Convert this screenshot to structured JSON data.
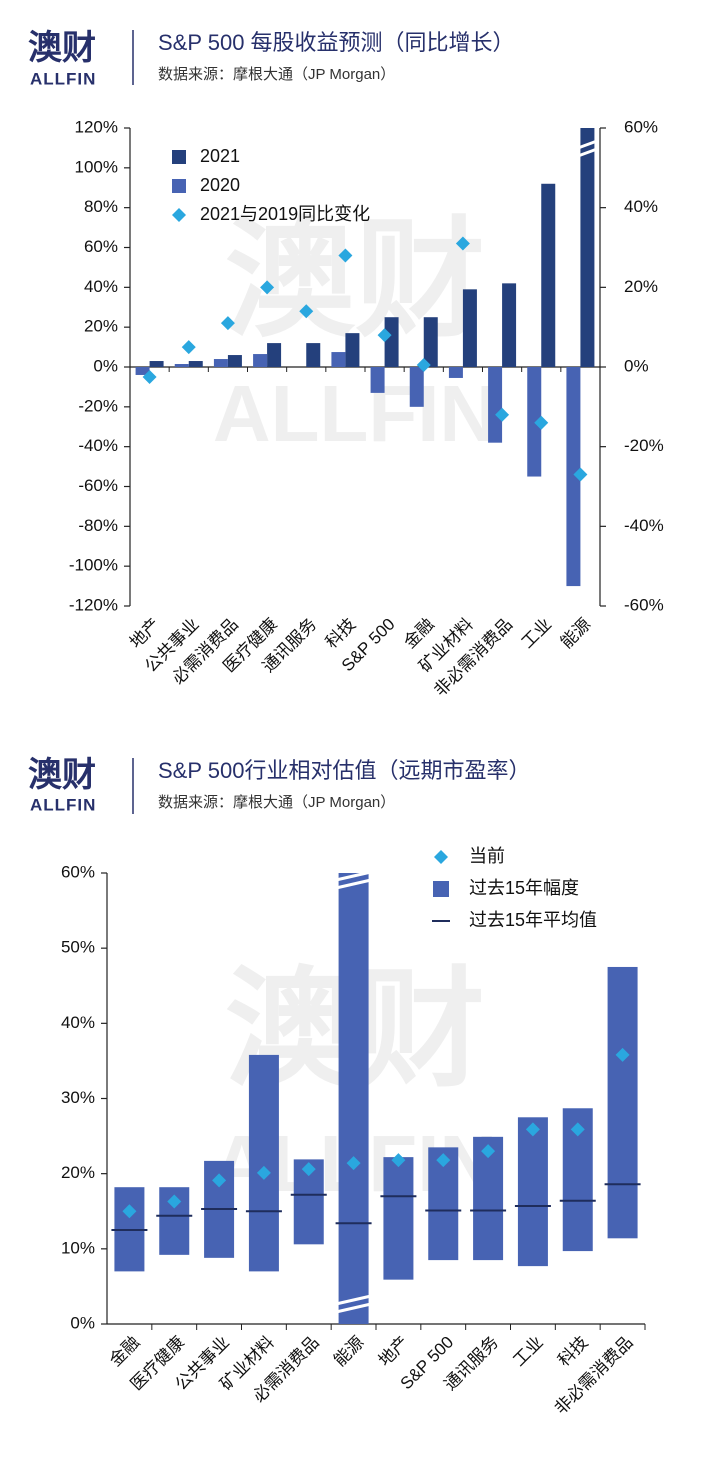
{
  "headers": [
    {
      "logo": "澳财",
      "logo_sub": "ALLFIN",
      "title": "S&P 500 每股收益预测（同比增长）",
      "subtitle": "数据来源：摩根大通（JP Morgan）"
    },
    {
      "logo": "澳财",
      "logo_sub": "ALLFIN",
      "title": "S&P 500行业相对估值（远期市盈率）",
      "subtitle": "数据来源：摩根大通（JP Morgan）"
    }
  ],
  "chart_data": [
    {
      "type": "bar",
      "categories": [
        "地产",
        "公共事业",
        "必需消费品",
        "医疗健康",
        "通讯服务",
        "科技",
        "S&P 500",
        "金融",
        "矿业材料",
        "非必需消费品",
        "工业",
        "能源"
      ],
      "series": [
        {
          "name": "2021",
          "color": "#24407c",
          "values": [
            3,
            3,
            6,
            12,
            12,
            17,
            25,
            25,
            39,
            42,
            92,
            120
          ]
        },
        {
          "name": "2020",
          "color": "#4763b3",
          "values": [
            -4,
            1.5,
            4,
            6.5,
            0,
            7.5,
            -13,
            -20,
            -5.5,
            -38,
            -55,
            -110
          ]
        },
        {
          "name": "2021与2019同比变化",
          "color": "#2aa7df",
          "axis": "y2",
          "marker": "diamond",
          "values": [
            -2.5,
            5,
            11,
            20,
            14,
            28,
            8,
            0.5,
            31,
            -12,
            -14,
            -27
          ]
        }
      ],
      "ylim": [
        -120,
        120
      ],
      "yticks": [
        {
          "value": -120,
          "label": "-120%"
        },
        {
          "value": -100,
          "label": "-100%"
        },
        {
          "value": -80,
          "label": "-80%"
        },
        {
          "value": -60,
          "label": "-60%"
        },
        {
          "value": -40,
          "label": "-40%"
        },
        {
          "value": -20,
          "label": "-20%"
        },
        {
          "value": 0,
          "label": "0%"
        },
        {
          "value": 20,
          "label": "20%"
        },
        {
          "value": 40,
          "label": "40%"
        },
        {
          "value": 60,
          "label": "60%"
        },
        {
          "value": 80,
          "label": "80%"
        },
        {
          "value": 100,
          "label": "100%"
        },
        {
          "value": 120,
          "label": "120%"
        }
      ],
      "y2lim": [
        -60,
        60
      ],
      "y2ticks": [
        {
          "value": -60,
          "label": "-60%"
        },
        {
          "value": -40,
          "label": "-40%"
        },
        {
          "value": -20,
          "label": "-20%"
        },
        {
          "value": 0,
          "label": "0%"
        },
        {
          "value": 20,
          "label": "20%"
        },
        {
          "value": 40,
          "label": "40%"
        },
        {
          "value": 60,
          "label": "60%"
        }
      ],
      "legend": "upper left"
    },
    {
      "type": "range",
      "categories": [
        "金融",
        "医疗健康",
        "公共事业",
        "矿业材料",
        "必需消费品",
        "能源",
        "地产",
        "S&P 500",
        "通讯服务",
        "工业",
        "科技",
        "非必需消费品"
      ],
      "series": [
        {
          "name": "当前",
          "color": "#2aa7df",
          "marker": "diamond",
          "values": [
            15.0,
            16.3,
            19.1,
            20.1,
            20.6,
            21.4,
            21.8,
            21.8,
            23.0,
            25.9,
            25.9,
            35.8
          ]
        },
        {
          "name": "过去15年幅度",
          "color": "#4763b3",
          "low": [
            7.0,
            9.2,
            8.8,
            7.0,
            10.6,
            0,
            5.9,
            8.5,
            8.5,
            7.7,
            9.7,
            11.4
          ],
          "high": [
            18.2,
            18.2,
            21.7,
            35.8,
            21.9,
            60,
            22.2,
            23.5,
            24.9,
            27.5,
            28.7,
            47.5
          ]
        },
        {
          "name": "过去15年平均值",
          "color": "#1f2d5c",
          "values": [
            12.5,
            14.4,
            15.3,
            15.0,
            17.2,
            13.4,
            17.0,
            15.1,
            15.1,
            15.7,
            16.4,
            18.6
          ]
        }
      ],
      "ylim": [
        0,
        60
      ],
      "yticks": [
        {
          "value": 0,
          "label": "0%"
        },
        {
          "value": 10,
          "label": "10%"
        },
        {
          "value": 20,
          "label": "20%"
        },
        {
          "value": 30,
          "label": "30%"
        },
        {
          "value": 40,
          "label": "40%"
        },
        {
          "value": 50,
          "label": "50%"
        },
        {
          "value": 60,
          "label": "60%"
        }
      ],
      "legend": "upper right"
    }
  ]
}
